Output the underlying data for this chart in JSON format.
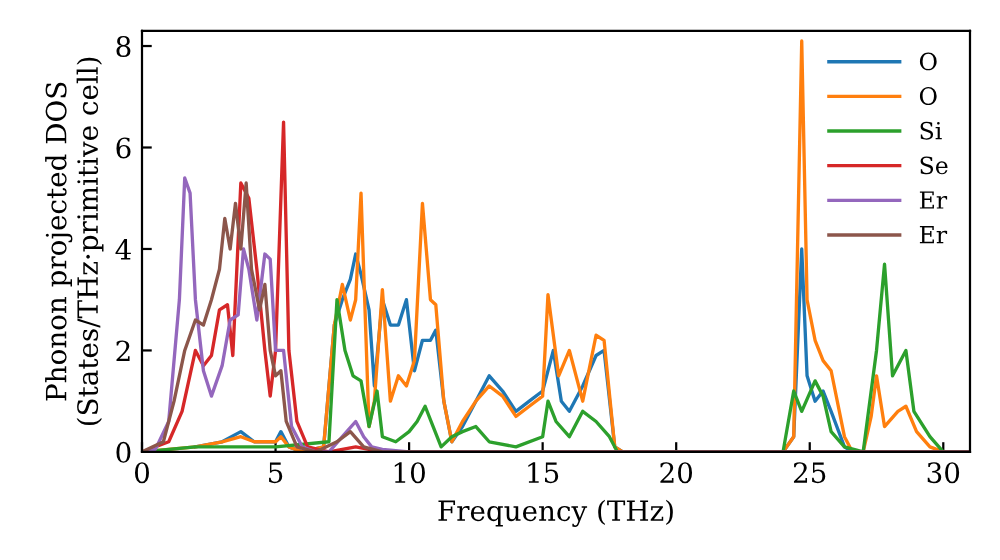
{
  "chart_data": {
    "type": "line",
    "xlabel": "Frequency (THz)",
    "ylabel": "Phonon projected DOS\n(States/THz·primitive cell)",
    "xlim": [
      0,
      31
    ],
    "ylim": [
      0,
      8.3
    ],
    "xticks": [
      0,
      5,
      10,
      15,
      20,
      25,
      30
    ],
    "yticks": [
      0,
      2,
      4,
      6,
      8
    ],
    "grid": false,
    "legend": "top right",
    "marker": "none",
    "line_style": "solid",
    "series": [
      {
        "name": "O",
        "color": "#1f77b4",
        "x": [
          2,
          3,
          3.7,
          4.2,
          5,
          5.2,
          5.5,
          6,
          6.8,
          7.2,
          7.5,
          7.8,
          8.0,
          8.2,
          8.5,
          8.7,
          9.0,
          9.3,
          9.6,
          9.9,
          10.2,
          10.5,
          10.8,
          11.0,
          11.3,
          11.6,
          12,
          12.5,
          13,
          13.5,
          14,
          14.5,
          15,
          15.4,
          15.7,
          16,
          16.5,
          17,
          17.3,
          17.7,
          18,
          24,
          24.4,
          24.7,
          24.9,
          25.2,
          25.5,
          25.8,
          26.3,
          26.6,
          31
        ],
        "values": [
          0.1,
          0.2,
          0.4,
          0.2,
          0.2,
          0.4,
          0.1,
          0,
          0.1,
          2.5,
          3.0,
          3.4,
          3.9,
          3.5,
          2.8,
          1.3,
          3.0,
          2.5,
          2.5,
          3.0,
          1.6,
          2.2,
          2.2,
          2.4,
          1.0,
          0.2,
          0.5,
          1.0,
          1.5,
          1.2,
          0.8,
          1.0,
          1.2,
          2.0,
          1.0,
          0.8,
          1.3,
          1.9,
          2.0,
          0.1,
          0,
          0,
          0.3,
          4.0,
          1.5,
          1.0,
          1.2,
          0.8,
          0.1,
          0,
          0
        ]
      },
      {
        "name": "O",
        "color": "#ff7f0e",
        "x": [
          0,
          1,
          2,
          3,
          3.7,
          4.2,
          5,
          5.2,
          5.5,
          6,
          6.8,
          7.2,
          7.5,
          7.8,
          8.0,
          8.2,
          8.5,
          8.7,
          9.0,
          9.3,
          9.6,
          9.9,
          10.2,
          10.5,
          10.8,
          11.0,
          11.3,
          11.6,
          12,
          12.5,
          13,
          13.5,
          14,
          14.5,
          15,
          15.2,
          15.6,
          16,
          16.5,
          17,
          17.3,
          17.7,
          18,
          24,
          24.4,
          24.7,
          24.9,
          25.2,
          25.5,
          25.8,
          26.3,
          26.6,
          27,
          27.3,
          27.5,
          27.8,
          28.3,
          28.6,
          29,
          29.5,
          30,
          31
        ],
        "values": [
          0,
          0.05,
          0.1,
          0.2,
          0.3,
          0.2,
          0.2,
          0.3,
          0.1,
          0,
          0.1,
          2.5,
          3.3,
          2.6,
          3.0,
          5.1,
          0.5,
          1.0,
          3.2,
          1.0,
          1.5,
          1.3,
          1.8,
          4.9,
          3.0,
          2.9,
          1.0,
          0.2,
          0.6,
          1.0,
          1.3,
          1.1,
          0.7,
          0.9,
          1.1,
          3.1,
          1.5,
          2.0,
          1.0,
          2.3,
          2.2,
          0.1,
          0,
          0,
          0.3,
          8.1,
          3.0,
          2.2,
          1.8,
          1.6,
          0.3,
          0,
          0,
          0.7,
          1.5,
          0.5,
          0.8,
          0.9,
          0.4,
          0.1,
          0,
          0
        ]
      },
      {
        "name": "Si",
        "color": "#2ca02c",
        "x": [
          0,
          2,
          5,
          7,
          7.3,
          7.6,
          7.9,
          8.2,
          8.5,
          8.8,
          9.0,
          9.5,
          10,
          10.3,
          10.6,
          10.9,
          11.2,
          11.6,
          12,
          12.5,
          13,
          14,
          15,
          15.2,
          15.5,
          16,
          16.5,
          17,
          17.5,
          17.8,
          24,
          24.4,
          24.7,
          25.2,
          25.5,
          25.8,
          26.3,
          27,
          27.5,
          27.8,
          28.1,
          28.6,
          28.9,
          29.5,
          30,
          31
        ],
        "values": [
          0,
          0.1,
          0.1,
          0.2,
          3.0,
          2.0,
          1.5,
          1.4,
          0.5,
          1.2,
          0.3,
          0.2,
          0.4,
          0.6,
          0.9,
          0.5,
          0.1,
          0.3,
          0.4,
          0.5,
          0.2,
          0.1,
          0.3,
          1.0,
          0.6,
          0.3,
          0.8,
          0.6,
          0.3,
          0,
          0,
          1.2,
          0.8,
          1.4,
          1.1,
          0.4,
          0.1,
          0,
          2.0,
          3.7,
          1.5,
          2.0,
          0.8,
          0.3,
          0,
          0
        ]
      },
      {
        "name": "Se",
        "color": "#d62728",
        "x": [
          0,
          1.0,
          1.5,
          2.0,
          2.3,
          2.6,
          2.9,
          3.2,
          3.4,
          3.7,
          4.0,
          4.3,
          4.6,
          4.8,
          5.0,
          5.3,
          5.5,
          5.8,
          6.2,
          7,
          8,
          9,
          31
        ],
        "values": [
          0,
          0.2,
          0.8,
          2.0,
          1.7,
          1.9,
          2.8,
          2.9,
          1.9,
          5.3,
          5.0,
          3.6,
          2.0,
          1.1,
          2.0,
          6.5,
          2.0,
          0.6,
          0.1,
          0,
          0.1,
          0,
          0
        ]
      },
      {
        "name": "Er",
        "color": "#9467bd",
        "x": [
          0,
          0.5,
          1.0,
          1.4,
          1.6,
          1.8,
          2.0,
          2.3,
          2.6,
          3.0,
          3.3,
          3.6,
          3.8,
          4.0,
          4.3,
          4.6,
          4.8,
          5.0,
          5.3,
          5.6,
          6.0,
          6.5,
          7,
          7.5,
          8,
          8.3,
          8.6,
          9,
          10,
          31
        ],
        "values": [
          0,
          0.05,
          0.6,
          3.0,
          5.4,
          5.1,
          3.0,
          1.6,
          1.1,
          1.7,
          2.6,
          2.7,
          4.0,
          3.6,
          2.6,
          3.9,
          3.8,
          2.0,
          2.0,
          0.5,
          0.1,
          0,
          0,
          0.3,
          0.6,
          0.3,
          0.1,
          0.05,
          0,
          0
        ]
      },
      {
        "name": "Er",
        "color": "#8c564b",
        "x": [
          0,
          0.8,
          1.2,
          1.6,
          2.0,
          2.3,
          2.6,
          2.9,
          3.1,
          3.3,
          3.5,
          3.7,
          3.9,
          4.1,
          4.4,
          4.6,
          4.8,
          5.0,
          5.2,
          5.4,
          5.8,
          6.5,
          7.3,
          7.8,
          8.3,
          9,
          31
        ],
        "values": [
          0,
          0.2,
          1.0,
          2.0,
          2.6,
          2.5,
          3.0,
          3.6,
          4.6,
          4.0,
          4.9,
          4.0,
          5.3,
          3.6,
          2.8,
          3.3,
          2.0,
          1.5,
          1.6,
          0.6,
          0.1,
          0,
          0.2,
          0.4,
          0.1,
          0,
          0
        ]
      }
    ]
  }
}
